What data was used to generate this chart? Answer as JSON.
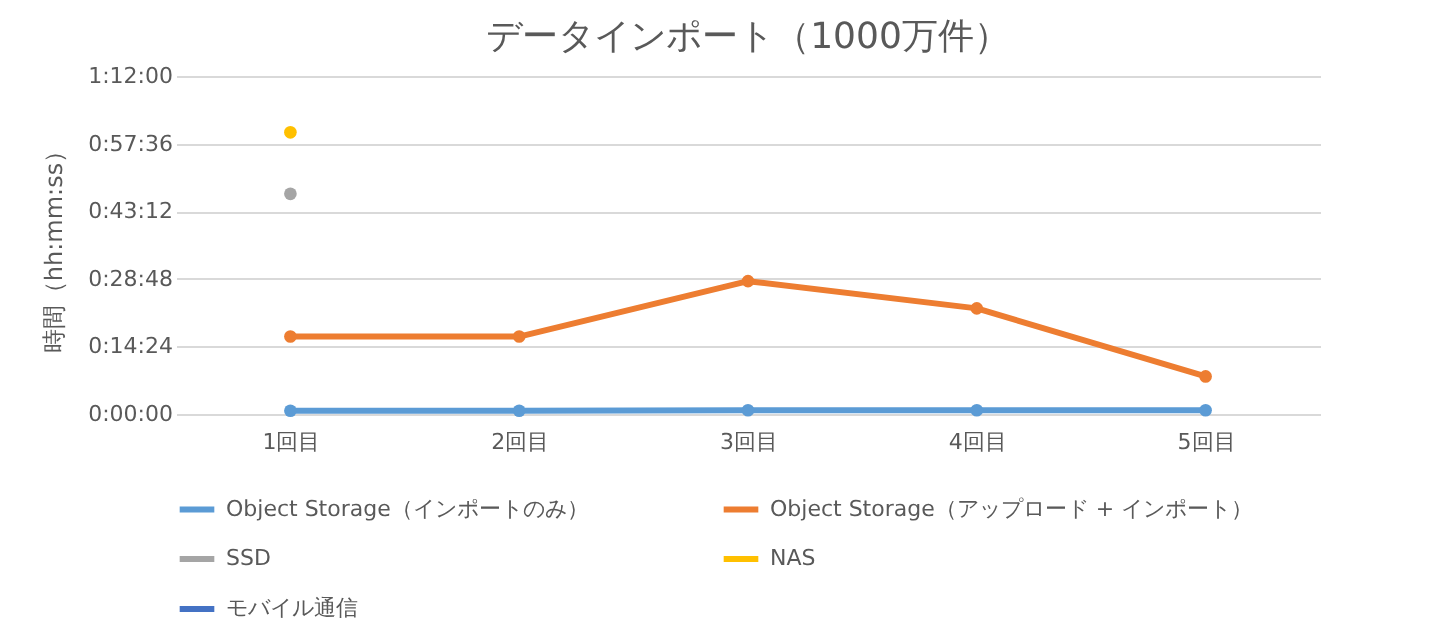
{
  "chart_data": {
    "type": "line",
    "title": "データインポート（1000万件）",
    "ylabel": "時間（hh:mm:ss）",
    "categories": [
      "1回目",
      "2回目",
      "3回目",
      "4回目",
      "5回目"
    ],
    "series": [
      {
        "name": "Object Storage（インポートのみ）",
        "color": "#5b9bd5",
        "values": [
          0.7,
          0.7,
          0.8,
          0.8,
          0.8
        ]
      },
      {
        "name": "Object Storage（アップロード + インポート）",
        "color": "#ed7d31",
        "values": [
          16.5,
          16.5,
          28.3,
          22.5,
          8.0
        ]
      },
      {
        "name": "SSD",
        "color": "#a5a5a5",
        "values": [
          46.9,
          null,
          null,
          null,
          null
        ]
      },
      {
        "name": "NAS",
        "color": "#ffc000",
        "values": [
          60.0,
          null,
          null,
          null,
          null
        ]
      },
      {
        "name": "モバイル通信",
        "color": "#4472c4",
        "values": [
          null,
          null,
          null,
          null,
          null
        ]
      }
    ],
    "ylim": [
      0,
      72
    ],
    "yticks": [
      {
        "value": 0,
        "label": "0:00:00"
      },
      {
        "value": 14.4,
        "label": "0:14:24"
      },
      {
        "value": 28.8,
        "label": "0:28:48"
      },
      {
        "value": 43.2,
        "label": "0:43:12"
      },
      {
        "value": 57.6,
        "label": "0:57:36"
      },
      {
        "value": 72,
        "label": "1:12:00"
      }
    ],
    "grid": "y",
    "legend": "bottom",
    "marker": "circle",
    "line_style": "solid"
  }
}
